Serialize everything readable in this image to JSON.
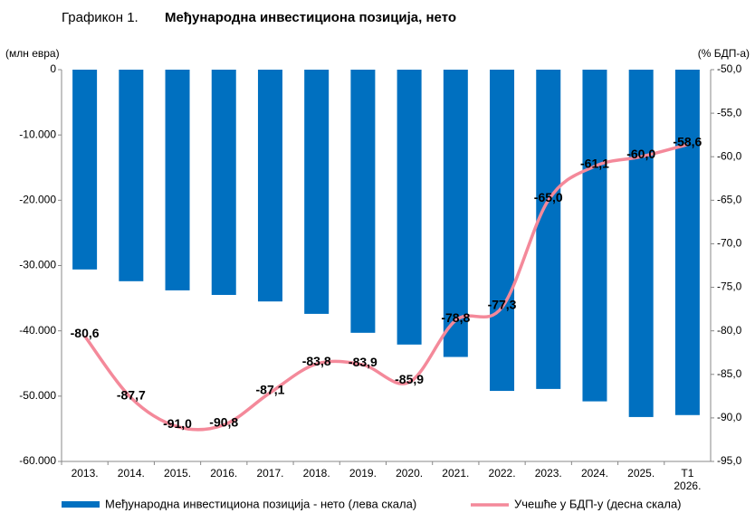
{
  "chart_data": {
    "type": "bar",
    "title_label": "Графикон 1.",
    "title": "Међународна инвестициона позиција, нето",
    "y_label": "(млн евра)",
    "y2_label": "(% БДП-а)",
    "categories": [
      "2013.",
      "2014.",
      "2015.",
      "2016.",
      "2017.",
      "2018.",
      "2019.",
      "2020.",
      "2021.",
      "2022.",
      "2023.",
      "2024.",
      "2025.",
      "Т1 2026."
    ],
    "series": [
      {
        "name": "Међународна инвестициона позиција - нето (лева скала)",
        "type": "bar",
        "color": "#0070c0",
        "values": [
          -30600,
          -32400,
          -33800,
          -34500,
          -35500,
          -37400,
          -40300,
          -42100,
          -44000,
          -49200,
          -48900,
          -50800,
          -53200,
          -52900
        ]
      },
      {
        "name": "Учешће у БДП-у (десна скала)",
        "type": "line",
        "axis": "y2",
        "color": "#f4899a",
        "values": [
          -80.6,
          -87.7,
          -91.0,
          -90.8,
          -87.1,
          -83.8,
          -83.9,
          -85.9,
          -78.8,
          -77.3,
          -65.0,
          -61.1,
          -60.0,
          -58.6
        ],
        "value_labels": [
          "-80,6",
          "-87,7",
          "-91,0",
          "-90,8",
          "-87,1",
          "-83,8",
          "-83,9",
          "-85,9",
          "-78,8",
          "-77,3",
          "-65,0",
          "-61,1",
          "-60,0",
          "-58,6"
        ]
      }
    ],
    "ylim": [
      -60000,
      0
    ],
    "yticks": [
      0,
      {
        "value": -10000,
        "label": "-10.000"
      },
      {
        "value": -20000,
        "label": "-20.000"
      },
      {
        "value": -30000,
        "label": "-30.000"
      },
      {
        "value": -40000,
        "label": "-40.000"
      },
      {
        "value": -50000,
        "label": "-50.000"
      },
      {
        "value": -60000,
        "label": "-60.000"
      }
    ],
    "y2lim": [
      -95,
      -50
    ],
    "y2ticks": [
      {
        "value": -50,
        "label": "-50,0"
      },
      {
        "value": -55,
        "label": "-55,0"
      },
      {
        "value": -60,
        "label": "-60,0"
      },
      {
        "value": -65,
        "label": "-65,0"
      },
      {
        "value": -70,
        "label": "-70,0"
      },
      {
        "value": -75,
        "label": "-75,0"
      },
      {
        "value": -80,
        "label": "-80,0"
      },
      {
        "value": -85,
        "label": "-85,0"
      },
      {
        "value": -90,
        "label": "-90,0"
      },
      {
        "value": -95,
        "label": "-95,0"
      }
    ]
  }
}
